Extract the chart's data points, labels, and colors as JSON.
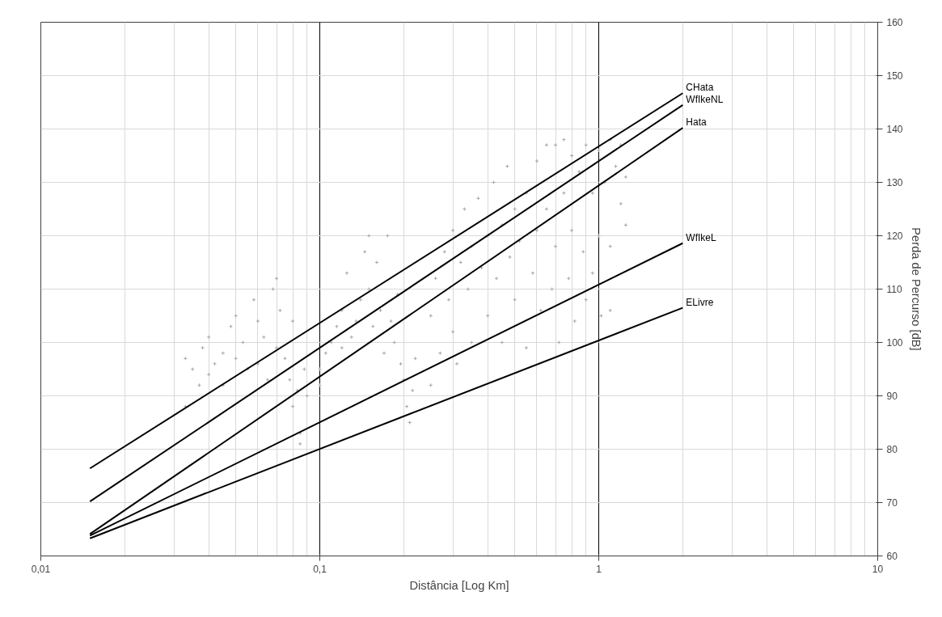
{
  "chart_data": {
    "type": "line",
    "xlabel": "Distância [Log Km]",
    "ylabel": "Perda de Percurso [dB]",
    "log": "x",
    "grid": true,
    "line_style": "solid",
    "xlim": [
      0.01,
      10
    ],
    "ylim": [
      60,
      160
    ],
    "xticks": [
      {
        "value": 0.01,
        "label": "0,01"
      },
      {
        "value": 0.1,
        "label": "0,1"
      },
      1,
      10
    ],
    "yticks": [
      60,
      70,
      80,
      90,
      100,
      110,
      120,
      130,
      140,
      150,
      160
    ],
    "series": [
      {
        "type": "scatter",
        "marker": "cross",
        "color": "#a6a6a6",
        "x": [
          0.033,
          0.033,
          0.035,
          0.037,
          0.038,
          0.04,
          0.04,
          0.042,
          0.045,
          0.045,
          0.048,
          0.05,
          0.05,
          0.053,
          0.055,
          0.058,
          0.06,
          0.06,
          0.063,
          0.065,
          0.068,
          0.07,
          0.07,
          0.072,
          0.075,
          0.078,
          0.08,
          0.08,
          0.083,
          0.085,
          0.085,
          0.088,
          0.09,
          0.1,
          0.1,
          0.105,
          0.11,
          0.115,
          0.12,
          0.12,
          0.125,
          0.13,
          0.135,
          0.14,
          0.145,
          0.15,
          0.15,
          0.155,
          0.16,
          0.165,
          0.17,
          0.175,
          0.18,
          0.185,
          0.19,
          0.195,
          0.2,
          0.205,
          0.21,
          0.215,
          0.22,
          0.25,
          0.25,
          0.26,
          0.27,
          0.28,
          0.29,
          0.3,
          0.3,
          0.31,
          0.32,
          0.33,
          0.34,
          0.35,
          0.35,
          0.37,
          0.38,
          0.4,
          0.4,
          0.42,
          0.43,
          0.45,
          0.45,
          0.47,
          0.48,
          0.5,
          0.5,
          0.52,
          0.55,
          0.55,
          0.58,
          0.6,
          0.6,
          0.62,
          0.65,
          0.65,
          0.68,
          0.7,
          0.7,
          0.72,
          0.75,
          0.75,
          0.78,
          0.8,
          0.8,
          0.82,
          0.85,
          0.88,
          0.9,
          0.9,
          0.95,
          0.95,
          1.0,
          1.0,
          1.02,
          1.05,
          1.1,
          1.1,
          1.1,
          1.15,
          1.2,
          1.2,
          1.25,
          1.25
        ],
        "values": [
          88,
          97,
          95,
          92,
          99,
          101,
          94,
          96,
          98,
          92,
          103,
          105,
          97,
          100,
          95,
          108,
          104,
          96,
          101,
          93,
          110,
          112,
          99,
          106,
          97,
          93,
          104,
          88,
          91,
          83,
          81,
          95,
          90,
          95,
          92,
          98,
          100,
          103,
          106,
          99,
          113,
          101,
          104,
          108,
          117,
          120,
          110,
          103,
          115,
          106,
          98,
          120,
          104,
          100,
          109,
          96,
          93,
          88,
          85,
          91,
          97,
          92,
          105,
          112,
          98,
          117,
          108,
          121,
          102,
          96,
          115,
          125,
          110,
          118,
          100,
          127,
          114,
          120,
          105,
          130,
          112,
          122,
          100,
          133,
          116,
          125,
          108,
          119,
          128,
          99,
          113,
          134,
          121,
          106,
          137,
          125,
          110,
          137,
          118,
          100,
          138,
          128,
          112,
          135,
          121,
          104,
          132,
          117,
          137,
          108,
          128,
          113,
          136,
          120,
          105,
          130,
          138,
          118,
          106,
          133,
          137,
          126,
          131,
          122
        ]
      },
      {
        "name": "CHata",
        "color": "#000000",
        "x": [
          0.015,
          2
        ],
        "values": [
          76.4,
          146.7
        ]
      },
      {
        "name": "WfIkeNL",
        "color": "#000000",
        "x": [
          0.015,
          2
        ],
        "values": [
          70.2,
          144.5
        ]
      },
      {
        "name": "Hata",
        "color": "#000000",
        "x": [
          0.015,
          2
        ],
        "values": [
          64.1,
          140.2
        ]
      },
      {
        "name": "WfIkeL",
        "color": "#000000",
        "x": [
          0.015,
          2
        ],
        "values": [
          63.8,
          118.6
        ]
      },
      {
        "name": "ELivre",
        "color": "#000000",
        "x": [
          0.015,
          2
        ],
        "values": [
          63.3,
          106.5
        ]
      }
    ]
  }
}
